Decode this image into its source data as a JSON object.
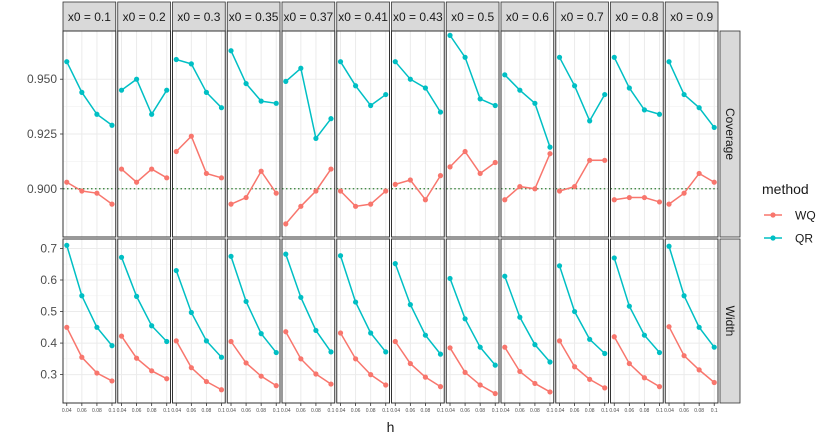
{
  "chart_data": {
    "type": "line",
    "xlabel": "h",
    "x": [
      0.04,
      0.06,
      0.08,
      0.1
    ],
    "x_tick_labels": [
      "0.04",
      "0.06",
      "0.08",
      "0.1"
    ],
    "facet_columns": [
      "x0 = 0.1",
      "x0 = 0.2",
      "x0 = 0.3",
      "x0 = 0.35",
      "x0 = 0.37",
      "x0 = 0.41",
      "x0 = 0.43",
      "x0 = 0.5",
      "x0 = 0.6",
      "x0 = 0.7",
      "x0 = 0.8",
      "x0 = 0.9"
    ],
    "facet_rows": [
      {
        "label": "Coverage",
        "ylim": [
          0.878,
          0.972
        ],
        "yticks": [
          0.9,
          0.925,
          0.95
        ],
        "ytick_labels": [
          "0.900",
          "0.925",
          "0.950"
        ],
        "reference_line": 0.9
      },
      {
        "label": "Width",
        "ylim": [
          0.21,
          0.73
        ],
        "yticks": [
          0.3,
          0.4,
          0.5,
          0.6,
          0.7
        ],
        "ytick_labels": [
          "0.3",
          "0.4",
          "0.5",
          "0.6",
          "0.7"
        ]
      }
    ],
    "legend": {
      "title": "method",
      "position": "right",
      "entries": [
        {
          "name": "WQ",
          "color": "#F8766D"
        },
        {
          "name": "QR",
          "color": "#00BFC4"
        }
      ]
    },
    "series": [
      {
        "name": "WQ",
        "color": "#F8766D",
        "coverage": [
          [
            0.903,
            0.899,
            0.898,
            0.893
          ],
          [
            0.909,
            0.903,
            0.909,
            0.905
          ],
          [
            0.917,
            0.924,
            0.907,
            0.905
          ],
          [
            0.893,
            0.896,
            0.908,
            0.898
          ],
          [
            0.884,
            0.892,
            0.899,
            0.909
          ],
          [
            0.899,
            0.892,
            0.893,
            0.899
          ],
          [
            0.902,
            0.904,
            0.895,
            0.906
          ],
          [
            0.91,
            0.917,
            0.907,
            0.912
          ],
          [
            0.895,
            0.901,
            0.9,
            0.916
          ],
          [
            0.899,
            0.901,
            0.913,
            0.913
          ],
          [
            0.895,
            0.896,
            0.896,
            0.894
          ],
          [
            0.893,
            0.898,
            0.907,
            0.903
          ]
        ],
        "width": [
          [
            0.45,
            0.355,
            0.305,
            0.28
          ],
          [
            0.422,
            0.352,
            0.312,
            0.287
          ],
          [
            0.407,
            0.322,
            0.278,
            0.252
          ],
          [
            0.405,
            0.337,
            0.295,
            0.265
          ],
          [
            0.436,
            0.35,
            0.302,
            0.27
          ],
          [
            0.432,
            0.35,
            0.3,
            0.267
          ],
          [
            0.405,
            0.335,
            0.292,
            0.262
          ],
          [
            0.385,
            0.307,
            0.267,
            0.24
          ],
          [
            0.387,
            0.31,
            0.272,
            0.245
          ],
          [
            0.407,
            0.325,
            0.285,
            0.258
          ],
          [
            0.42,
            0.335,
            0.29,
            0.262
          ],
          [
            0.452,
            0.36,
            0.315,
            0.275
          ]
        ]
      },
      {
        "name": "QR",
        "color": "#00BFC4",
        "coverage": [
          [
            0.958,
            0.944,
            0.934,
            0.929
          ],
          [
            0.945,
            0.95,
            0.934,
            0.945
          ],
          [
            0.959,
            0.957,
            0.944,
            0.937
          ],
          [
            0.963,
            0.948,
            0.94,
            0.939
          ],
          [
            0.949,
            0.955,
            0.923,
            0.932
          ],
          [
            0.958,
            0.947,
            0.938,
            0.943
          ],
          [
            0.958,
            0.95,
            0.946,
            0.935
          ],
          [
            0.97,
            0.96,
            0.941,
            0.938
          ],
          [
            0.952,
            0.945,
            0.939,
            0.919
          ],
          [
            0.96,
            0.947,
            0.931,
            0.943
          ],
          [
            0.96,
            0.946,
            0.936,
            0.934
          ],
          [
            0.958,
            0.943,
            0.937,
            0.928
          ]
        ],
        "width": [
          [
            0.71,
            0.55,
            0.45,
            0.392
          ],
          [
            0.672,
            0.548,
            0.455,
            0.405
          ],
          [
            0.63,
            0.497,
            0.407,
            0.355
          ],
          [
            0.675,
            0.532,
            0.43,
            0.37
          ],
          [
            0.682,
            0.545,
            0.44,
            0.372
          ],
          [
            0.677,
            0.53,
            0.432,
            0.372
          ],
          [
            0.652,
            0.522,
            0.425,
            0.365
          ],
          [
            0.605,
            0.477,
            0.387,
            0.33
          ],
          [
            0.612,
            0.482,
            0.395,
            0.34
          ],
          [
            0.645,
            0.5,
            0.412,
            0.367
          ],
          [
            0.67,
            0.517,
            0.425,
            0.37
          ],
          [
            0.707,
            0.55,
            0.45,
            0.387
          ]
        ]
      }
    ]
  }
}
